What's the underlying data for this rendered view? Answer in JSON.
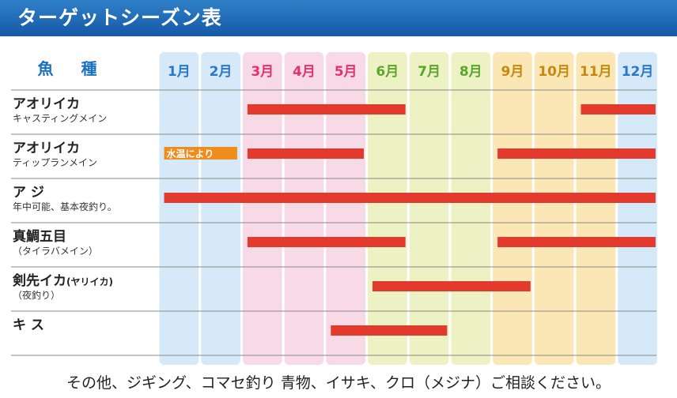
{
  "header": {
    "title": "ターゲットシーズン表"
  },
  "footer": {
    "note": "その他、ジギング、コマセ釣り 青物、イサキ、クロ（メジナ）ご相談ください。"
  },
  "chart_data": {
    "type": "table",
    "corner_label": "魚 種",
    "months": [
      "1月",
      "2月",
      "3月",
      "4月",
      "5月",
      "6月",
      "7月",
      "8月",
      "9月",
      "10月",
      "11月",
      "12月"
    ],
    "colors": {
      "winter_col": "#d5e9f8",
      "spring_col": "#f8d9e6",
      "summer_col": "#ecf2c3",
      "autumn_col": "#fbe6b5",
      "winter_text": "#2b78c9",
      "spring_text": "#e13372",
      "summer_text": "#5ba52a",
      "autumn_text": "#c48a0f",
      "bar": "#e23a2d",
      "note": "#f08c1c"
    },
    "rows": [
      {
        "name": "アオリイカ",
        "sub": "キャスティングメイン",
        "periods": [
          [
            3,
            6
          ],
          [
            11,
            12
          ]
        ]
      },
      {
        "name": "アオリイカ",
        "sub": "ティップランメイン",
        "periods": [
          [
            3,
            5
          ],
          [
            9,
            12
          ]
        ],
        "note": {
          "text": "水温により",
          "from": 1,
          "to": 2
        }
      },
      {
        "name": "ア ジ",
        "sub": "年中可能、基本夜釣り。",
        "periods": [
          [
            1,
            12
          ]
        ]
      },
      {
        "name": "真鯛五目",
        "sub": "（タイラバメイン）",
        "periods": [
          [
            3,
            6
          ],
          [
            9,
            12
          ]
        ]
      },
      {
        "name": "剣先イカ",
        "name_suffix": "(ヤリイカ)",
        "sub": "（夜釣り）",
        "periods": [
          [
            6,
            9
          ]
        ]
      },
      {
        "name": "キ ス",
        "sub": "",
        "periods": [
          [
            5,
            7
          ]
        ]
      }
    ]
  }
}
